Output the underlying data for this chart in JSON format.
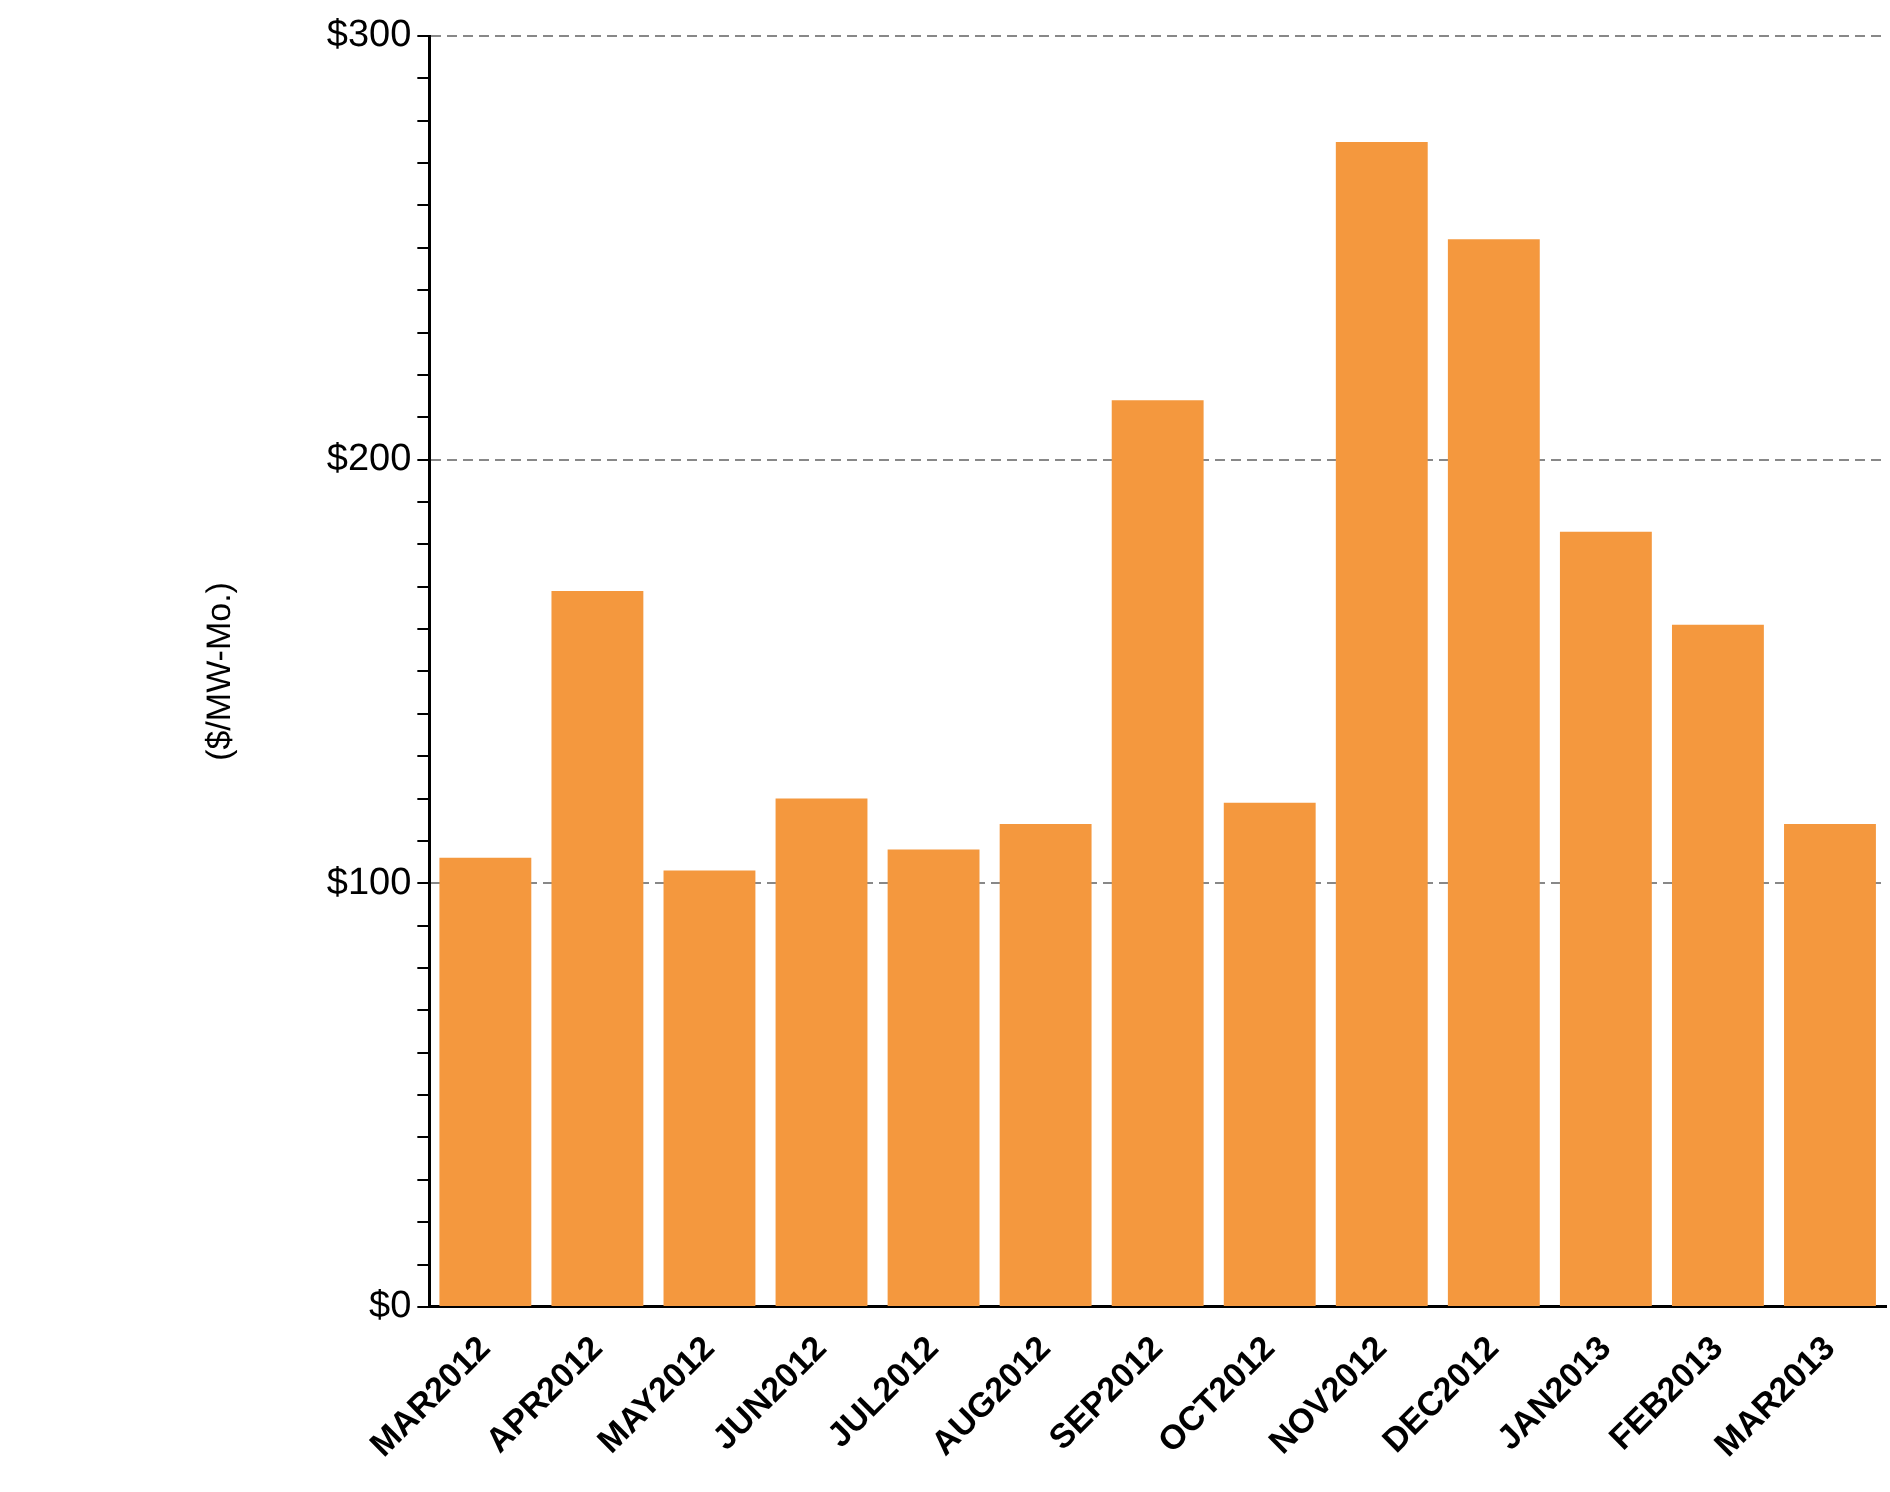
{
  "chart_data": {
    "type": "bar",
    "ylabel": "($/MW-Mo.)",
    "categories": [
      "MAR2012",
      "APR2012",
      "MAY2012",
      "JUN2012",
      "JUL2012",
      "AUG2012",
      "SEP2012",
      "OCT2012",
      "NOV2012",
      "DEC2012",
      "JAN2013",
      "FEB2013",
      "MAR2013"
    ],
    "series": [
      {
        "color": "#f4983e",
        "values": [
          106,
          169,
          103,
          120,
          108,
          114,
          214,
          119,
          275,
          252,
          183,
          161,
          114
        ]
      }
    ],
    "ylim": [
      0,
      300
    ],
    "yticks": [
      {
        "value": 0,
        "label": "$0"
      },
      {
        "value": 10,
        "label": null
      },
      {
        "value": 20,
        "label": null
      },
      {
        "value": 30,
        "label": null
      },
      {
        "value": 40,
        "label": null
      },
      {
        "value": 50,
        "label": null
      },
      {
        "value": 60,
        "label": null
      },
      {
        "value": 70,
        "label": null
      },
      {
        "value": 80,
        "label": null
      },
      {
        "value": 90,
        "label": null
      },
      {
        "value": 100,
        "label": "$100"
      },
      {
        "value": 110,
        "label": null
      },
      {
        "value": 120,
        "label": null
      },
      {
        "value": 130,
        "label": null
      },
      {
        "value": 140,
        "label": null
      },
      {
        "value": 150,
        "label": null
      },
      {
        "value": 160,
        "label": null
      },
      {
        "value": 170,
        "label": null
      },
      {
        "value": 180,
        "label": null
      },
      {
        "value": 190,
        "label": null
      },
      {
        "value": 200,
        "label": "$200"
      },
      {
        "value": 210,
        "label": null
      },
      {
        "value": 220,
        "label": null
      },
      {
        "value": 230,
        "label": null
      },
      {
        "value": 240,
        "label": null
      },
      {
        "value": 250,
        "label": null
      },
      {
        "value": 260,
        "label": null
      },
      {
        "value": 270,
        "label": null
      },
      {
        "value": 280,
        "label": null
      },
      {
        "value": 290,
        "label": null
      },
      {
        "value": 300,
        "label": "$300"
      }
    ],
    "grid": "y",
    "legend": false
  }
}
